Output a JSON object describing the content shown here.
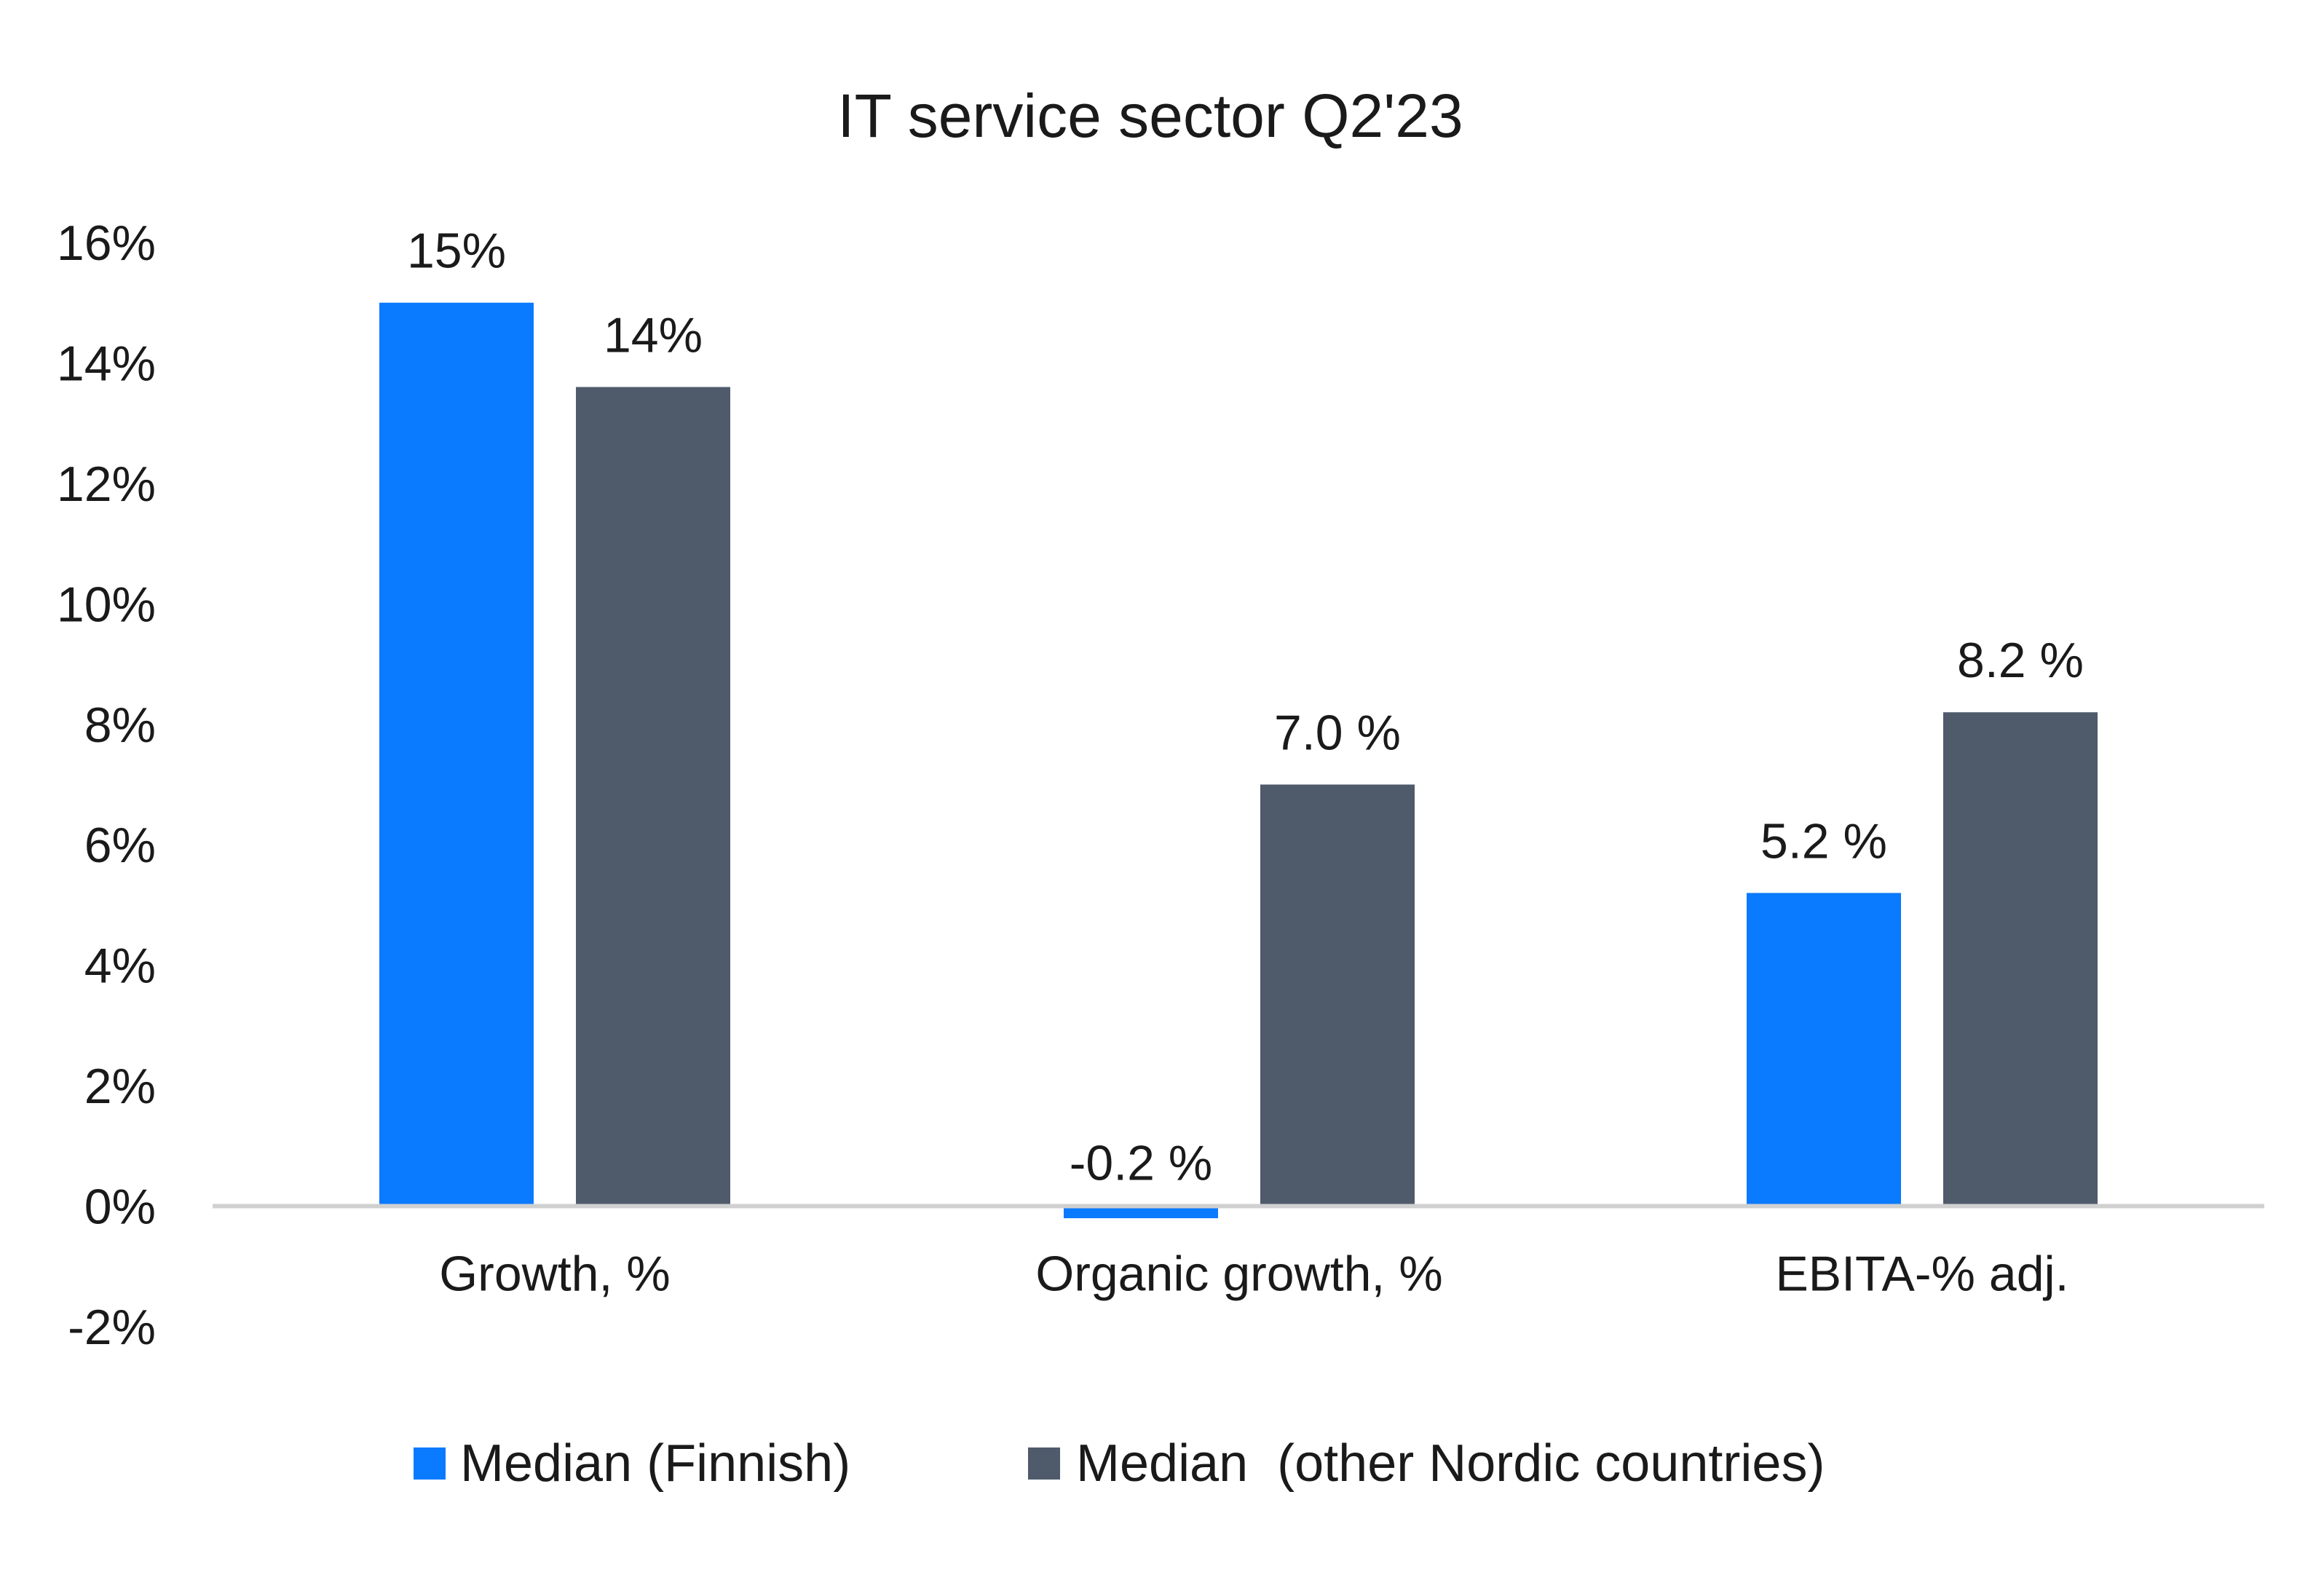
{
  "chart_data": {
    "type": "bar",
    "title": "IT service sector Q2'23",
    "xlabel": "",
    "ylabel": "",
    "categories": [
      "Growth, %",
      "Organic growth, %",
      "EBITA-% adj."
    ],
    "series": [
      {
        "name": "Median (Finnish)",
        "color": "#0a7aff",
        "values": [
          15.0,
          -0.2,
          5.2
        ],
        "labels": [
          "15%",
          "-0.2 %",
          "5.2 %"
        ]
      },
      {
        "name": "Median  (other Nordic countries)",
        "color": "#4f5a6b",
        "values": [
          13.6,
          7.0,
          8.2
        ],
        "labels": [
          "14%",
          "7.0 %",
          "8.2 %"
        ]
      }
    ],
    "ylim": [
      -2,
      16
    ],
    "yticks": [
      16,
      14,
      12,
      10,
      8,
      6,
      4,
      2,
      0,
      -2
    ],
    "ytick_labels": [
      "16%",
      "14%",
      "12%",
      "10%",
      "8%",
      "6%",
      "4%",
      "2%",
      "0%",
      "-2%"
    ],
    "grid": false,
    "legend_position": "bottom",
    "baseline_color": "#d0d0d0"
  }
}
